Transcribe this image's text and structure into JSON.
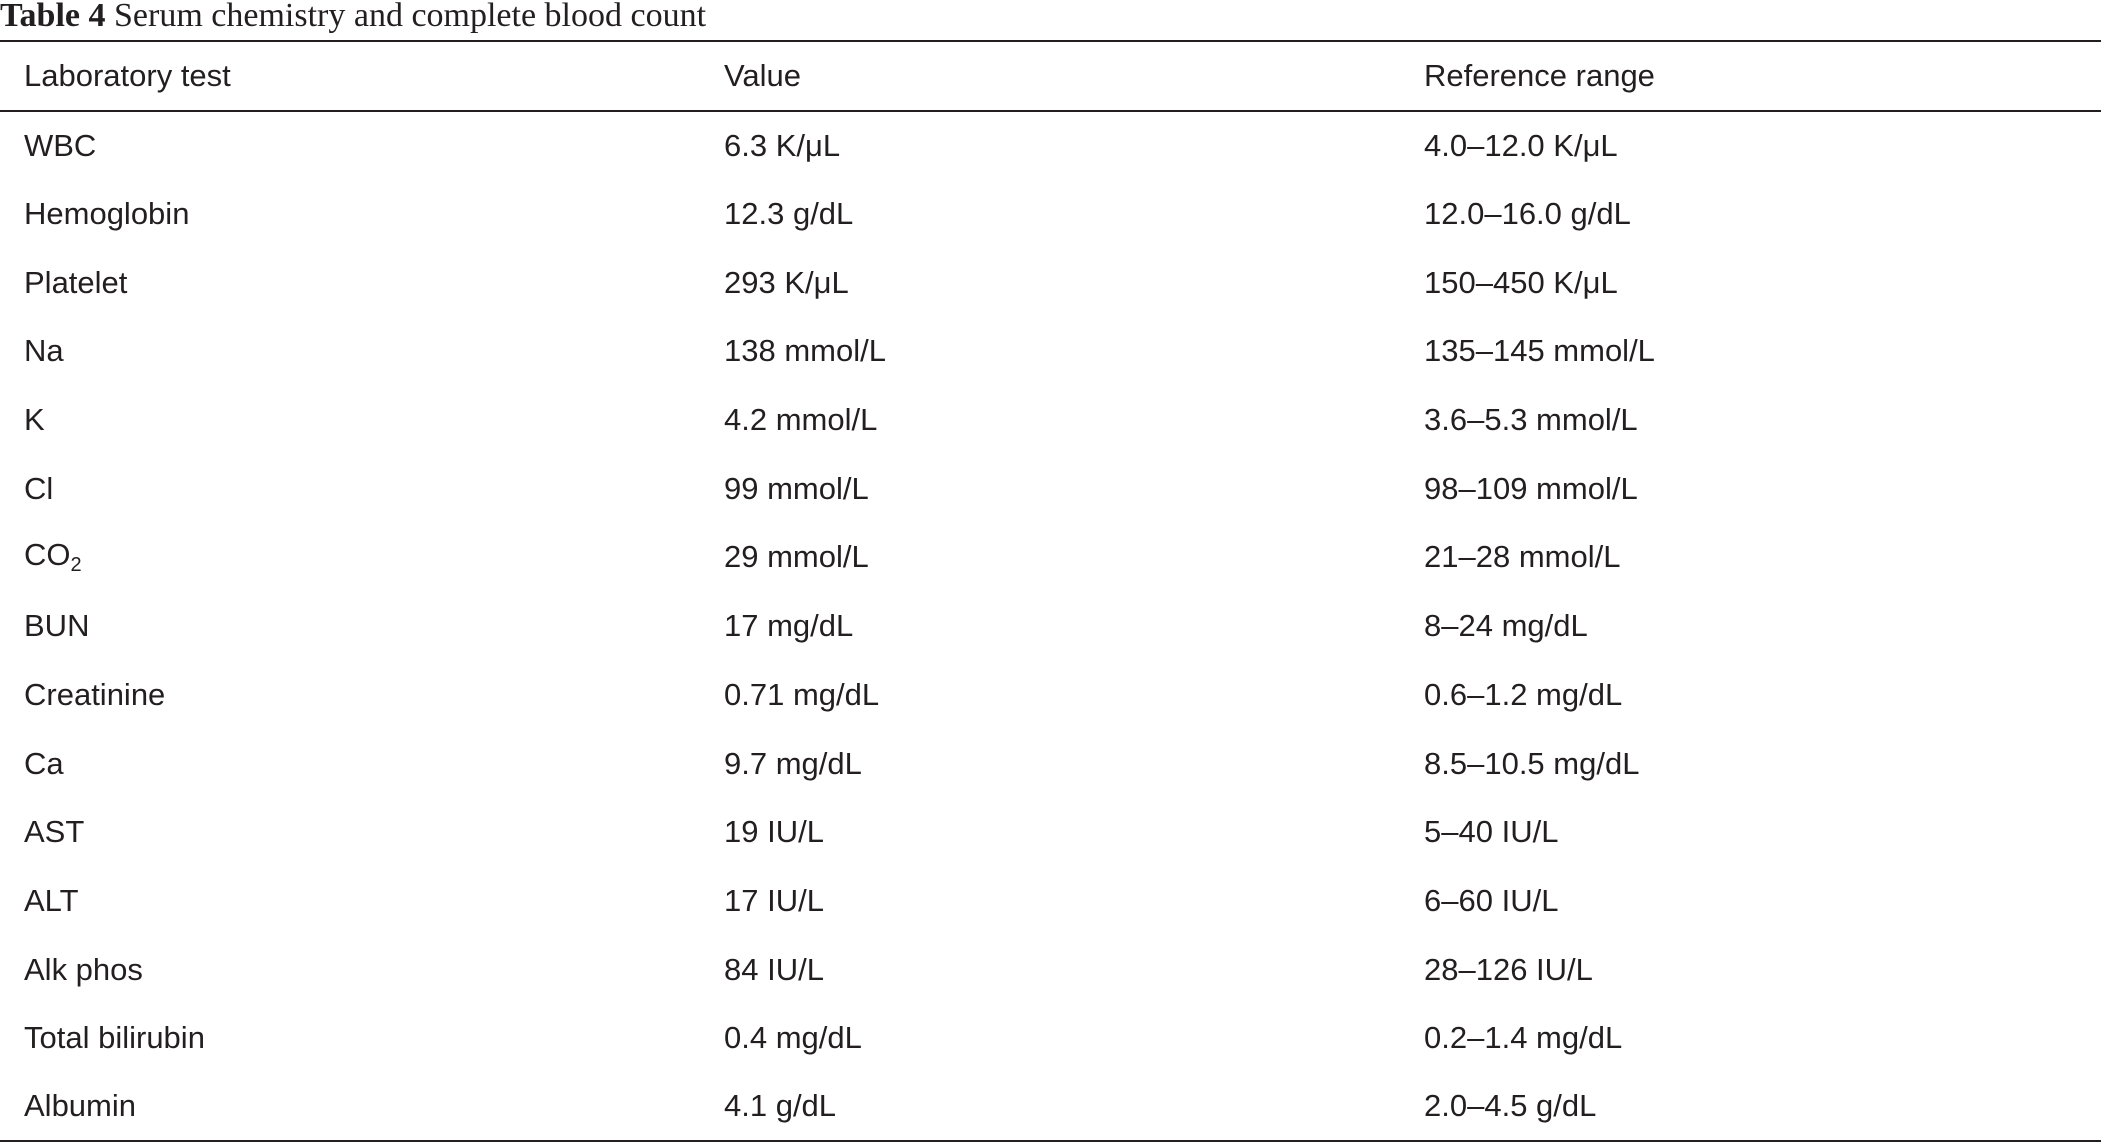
{
  "caption": {
    "label": "Table 4",
    "text": "Serum chemistry and complete blood count"
  },
  "table": {
    "headers": [
      "Laboratory test",
      "Value",
      "Reference range"
    ],
    "rows": [
      {
        "test": "WBC",
        "test_sub": "",
        "value": "6.3 K/μL",
        "range": "4.0–12.0 K/μL"
      },
      {
        "test": "Hemoglobin",
        "test_sub": "",
        "value": "12.3 g/dL",
        "range": "12.0–16.0 g/dL"
      },
      {
        "test": "Platelet",
        "test_sub": "",
        "value": "293 K/μL",
        "range": "150–450 K/μL"
      },
      {
        "test": "Na",
        "test_sub": "",
        "value": "138 mmol/L",
        "range": "135–145 mmol/L"
      },
      {
        "test": "K",
        "test_sub": "",
        "value": "4.2 mmol/L",
        "range": "3.6–5.3 mmol/L"
      },
      {
        "test": "Cl",
        "test_sub": "",
        "value": "99 mmol/L",
        "range": "98–109 mmol/L"
      },
      {
        "test": "CO",
        "test_sub": "2",
        "value": "29 mmol/L",
        "range": "21–28 mmol/L"
      },
      {
        "test": "BUN",
        "test_sub": "",
        "value": "17 mg/dL",
        "range": "8–24 mg/dL"
      },
      {
        "test": "Creatinine",
        "test_sub": "",
        "value": "0.71 mg/dL",
        "range": "0.6–1.2 mg/dL"
      },
      {
        "test": "Ca",
        "test_sub": "",
        "value": "9.7 mg/dL",
        "range": "8.5–10.5 mg/dL"
      },
      {
        "test": "AST",
        "test_sub": "",
        "value": "19 IU/L",
        "range": "5–40 IU/L"
      },
      {
        "test": "ALT",
        "test_sub": "",
        "value": "17 IU/L",
        "range": "6–60 IU/L"
      },
      {
        "test": "Alk phos",
        "test_sub": "",
        "value": "84 IU/L",
        "range": "28–126 IU/L"
      },
      {
        "test": "Total bilirubin",
        "test_sub": "",
        "value": "0.4 mg/dL",
        "range": "0.2–1.4 mg/dL"
      },
      {
        "test": "Albumin",
        "test_sub": "",
        "value": "4.1 g/dL",
        "range": "2.0–4.5 g/dL"
      }
    ]
  }
}
